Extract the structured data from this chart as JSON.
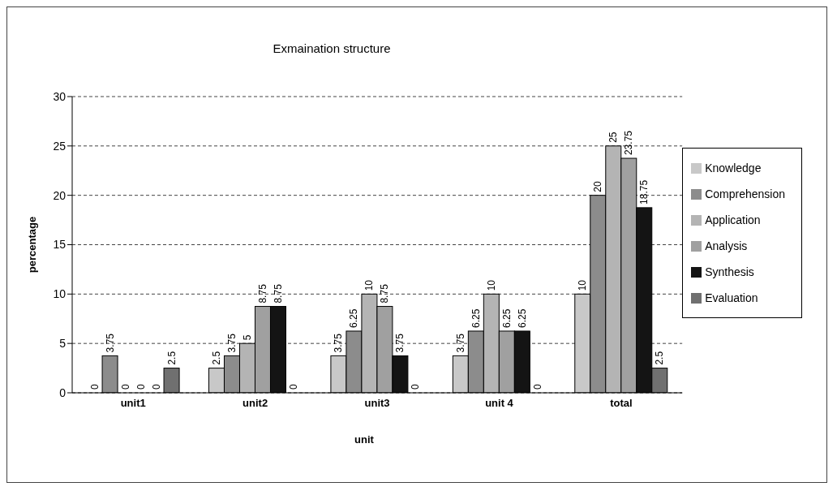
{
  "chart_data": {
    "type": "bar",
    "title": "Exmaination structure",
    "xlabel": "unit",
    "ylabel": "percentage",
    "categories": [
      "unit1",
      "unit2",
      "unit3",
      "unit 4",
      "total"
    ],
    "series": [
      {
        "name": "Knowledge",
        "color": "#c8c8c8",
        "values": [
          0,
          2.5,
          3.75,
          3.75,
          10
        ]
      },
      {
        "name": "Comprehension",
        "color": "#8c8c8c",
        "values": [
          3.75,
          3.75,
          6.25,
          6.25,
          20
        ]
      },
      {
        "name": "Application",
        "color": "#b4b4b4",
        "values": [
          0,
          5,
          10,
          10,
          25
        ]
      },
      {
        "name": "Analysis",
        "color": "#a0a0a0",
        "values": [
          0,
          8.75,
          8.75,
          6.25,
          23.75
        ]
      },
      {
        "name": "Synthesis",
        "color": "#141414",
        "values": [
          0,
          8.75,
          3.75,
          6.25,
          18.75
        ]
      },
      {
        "name": "Evaluation",
        "color": "#707070",
        "values": [
          2.5,
          0,
          0,
          0,
          2.5
        ]
      }
    ],
    "ylim": [
      0,
      30
    ],
    "yticks": [
      0,
      5,
      10,
      15,
      20,
      25,
      30
    ],
    "grid": "y",
    "legend": "right",
    "data_labels": true
  }
}
